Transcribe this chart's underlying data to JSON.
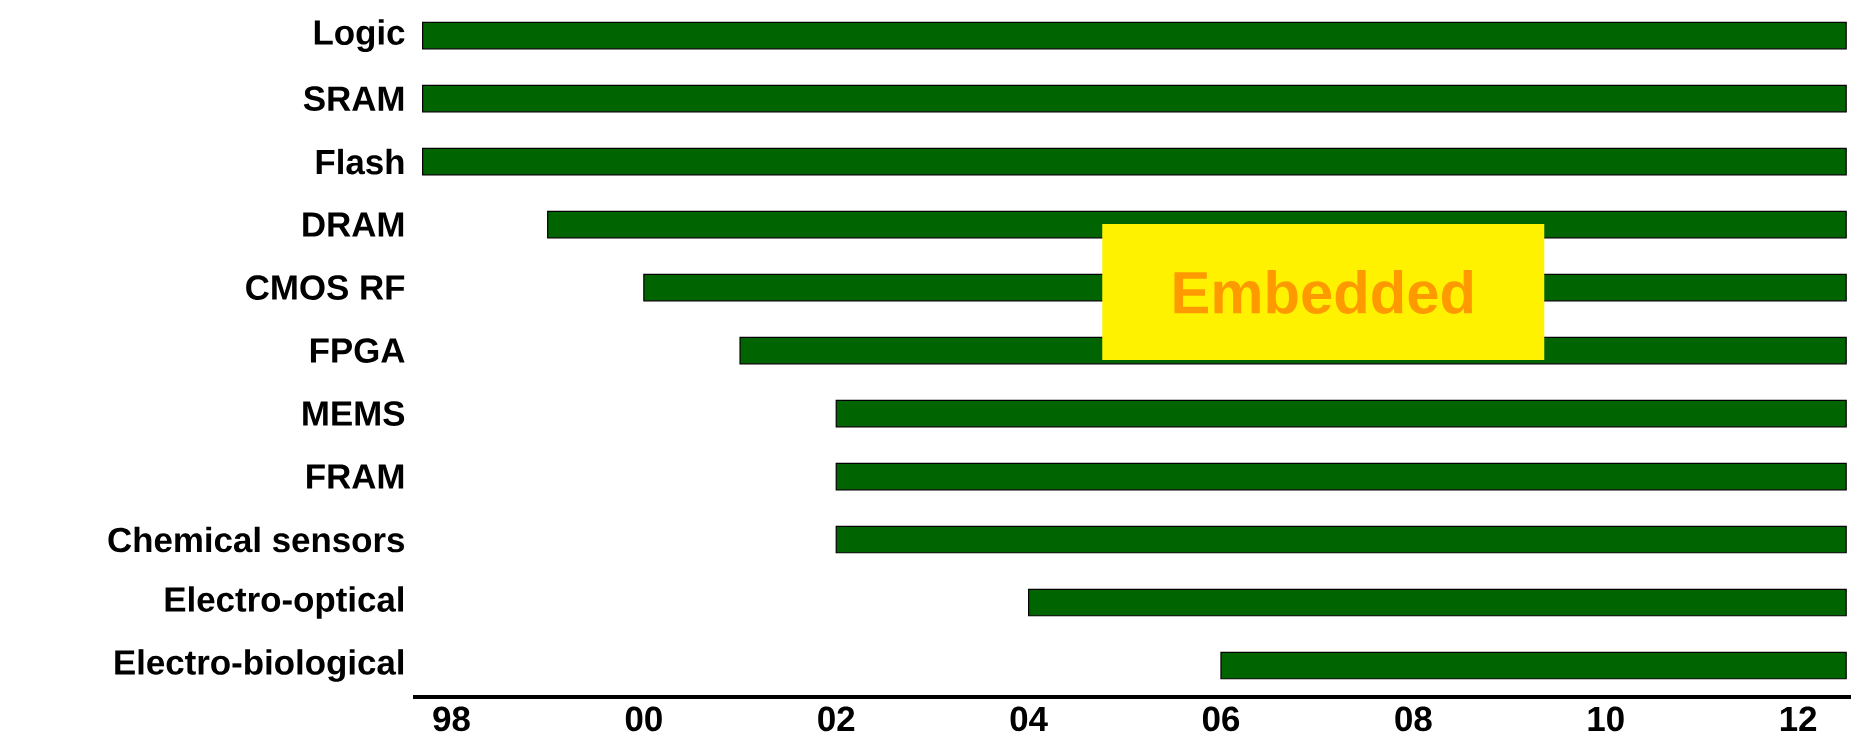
{
  "chart_data": {
    "type": "bar",
    "orientation": "horizontal",
    "color": "#006400",
    "categories": [
      "Logic",
      "SRAM",
      "Flash",
      "DRAM",
      "CMOS RF",
      "FPGA",
      "MEMS",
      "FRAM",
      "Chemical sensors",
      "Electro-optical",
      "Electro-biological"
    ],
    "base": [
      1997.7,
      1997.7,
      1997.7,
      1999,
      2000,
      2001,
      2002,
      2002,
      2002,
      2004,
      2006
    ],
    "values": [
      14.8,
      14.8,
      14.8,
      13.5,
      12.5,
      11.5,
      10.5,
      10.5,
      10.5,
      8.5,
      6.5
    ],
    "xlim": [
      1997.6,
      2012.55
    ],
    "xticks": [
      {
        "value": 1998,
        "label": "98"
      },
      {
        "value": 2000,
        "label": "00"
      },
      {
        "value": 2002,
        "label": "02"
      },
      {
        "value": 2004,
        "label": "04"
      },
      {
        "value": 2006,
        "label": "06"
      },
      {
        "value": 2008,
        "label": "08"
      },
      {
        "value": 2010,
        "label": "10"
      },
      {
        "value": 2012,
        "label": "12"
      }
    ],
    "annotations": [
      "Embedded"
    ]
  }
}
